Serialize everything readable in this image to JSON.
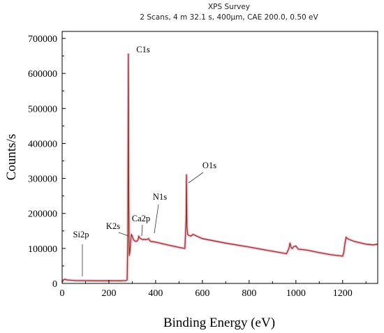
{
  "chart_data": {
    "type": "line",
    "title": "XPS Survey",
    "subtitle": "2 Scans,  4 m 32.1 s,  400μm,  CAE 200.0,  0.50 eV",
    "xlabel": "Binding Energy (eV)",
    "ylabel": "Counts/s",
    "xlim": [
      0,
      1350
    ],
    "ylim": [
      0,
      720000
    ],
    "x_ticks": [
      0,
      200,
      400,
      600,
      800,
      1000,
      1200
    ],
    "y_ticks": [
      0,
      100000,
      200000,
      300000,
      400000,
      500000,
      600000,
      700000
    ],
    "grid": false,
    "colors": {
      "series": "#8b3a2a",
      "glow": "#f4b8cf"
    },
    "series": [
      {
        "x": [
          0,
          5,
          12,
          20,
          40,
          60,
          100,
          150,
          200,
          250,
          270,
          278,
          281,
          283,
          285,
          287,
          290,
          293,
          296,
          300,
          305,
          310,
          315,
          320,
          325,
          328,
          332,
          335,
          340,
          345,
          350,
          360,
          370,
          375,
          380,
          400,
          450,
          500,
          525,
          530,
          532,
          534,
          537,
          540,
          550,
          560,
          600,
          700,
          800,
          900,
          960,
          970,
          975,
          980,
          985,
          990,
          1000,
          1010,
          1050,
          1100,
          1150,
          1200,
          1205,
          1210,
          1215,
          1220,
          1230,
          1250,
          1300,
          1330,
          1350
        ],
        "y": [
          3000,
          10000,
          12000,
          10000,
          9000,
          8000,
          8000,
          7500,
          7500,
          7500,
          8000,
          10000,
          130000,
          655000,
          250000,
          80000,
          90000,
          120000,
          140000,
          135000,
          125000,
          122000,
          120000,
          121000,
          125000,
          135000,
          130000,
          128000,
          127000,
          125000,
          126000,
          125000,
          128000,
          122000,
          120000,
          118000,
          110000,
          103000,
          100000,
          180000,
          310000,
          160000,
          140000,
          138000,
          135000,
          140000,
          128000,
          115000,
          104000,
          92000,
          85000,
          100000,
          115000,
          102000,
          100000,
          105000,
          107000,
          98000,
          95000,
          88000,
          82000,
          78000,
          90000,
          115000,
          132000,
          128000,
          125000,
          120000,
          112000,
          110000,
          112000
        ]
      }
    ],
    "annotations": [
      "C1s",
      "O1s",
      "N1s",
      "Ca2p",
      "K2s",
      "Si2p"
    ]
  }
}
